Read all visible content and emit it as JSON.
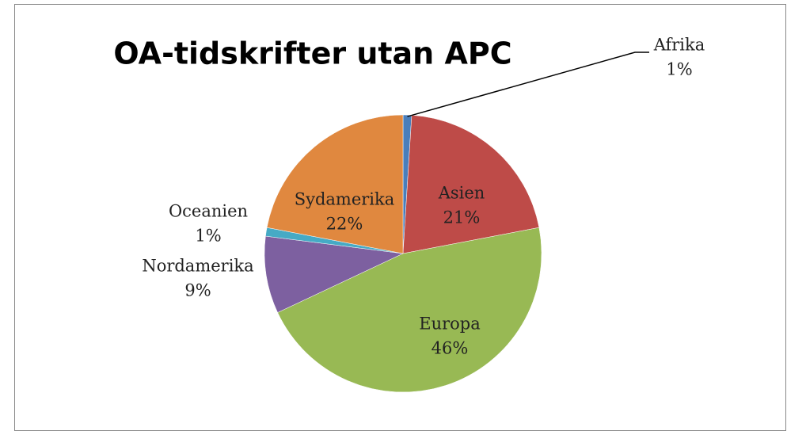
{
  "chart_data": {
    "type": "pie",
    "title": "OA-tidskrifter utan APC",
    "categories": [
      "Afrika",
      "Asien",
      "Europa",
      "Nordamerika",
      "Oceanien",
      "Sydamerika"
    ],
    "values": [
      1,
      21,
      46,
      9,
      1,
      22
    ],
    "value_labels": [
      "1%",
      "21%",
      "46%",
      "9%",
      "1%",
      "22%"
    ],
    "colors": [
      "#4a7ebb",
      "#be4b48",
      "#98b954",
      "#7d60a0",
      "#46aac5",
      "#e0883f"
    ]
  }
}
